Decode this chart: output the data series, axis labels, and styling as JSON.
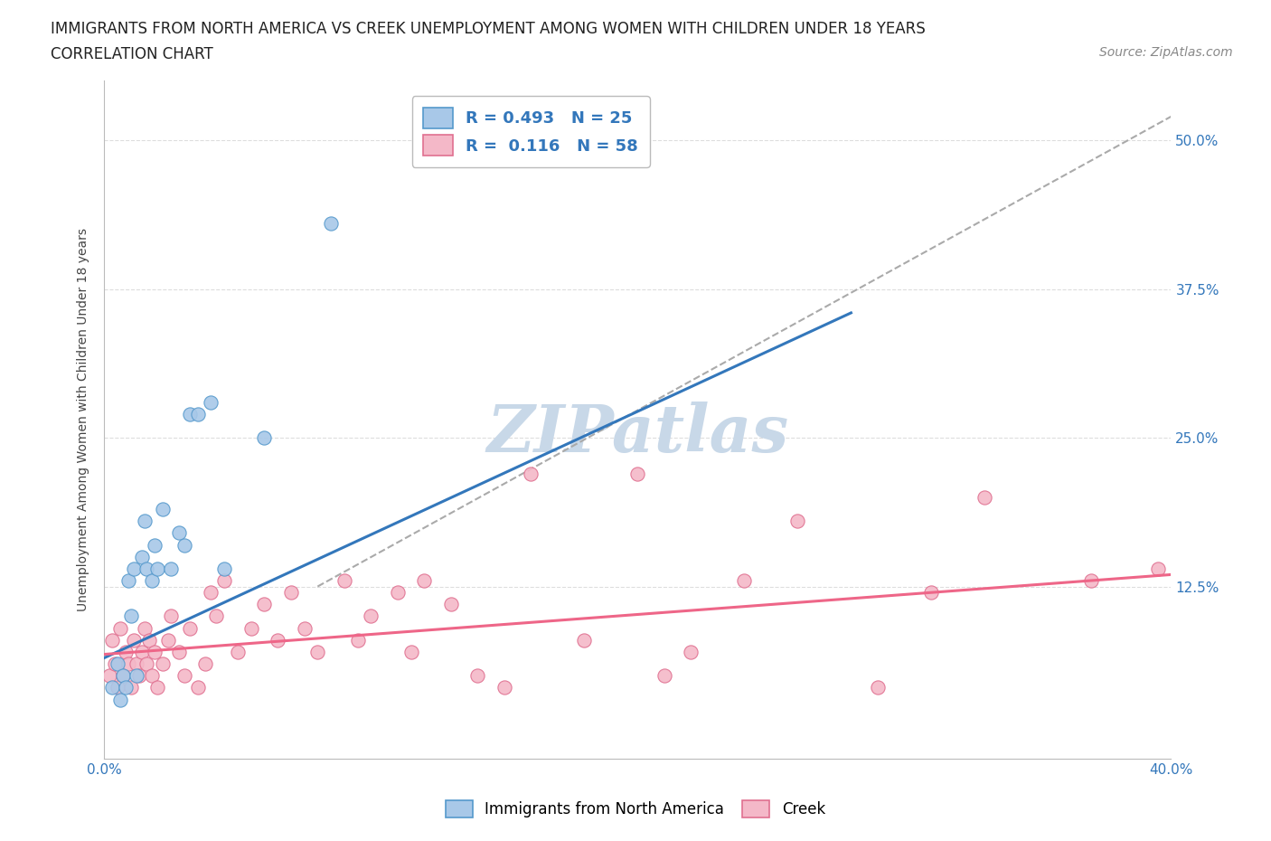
{
  "title_line1": "IMMIGRANTS FROM NORTH AMERICA VS CREEK UNEMPLOYMENT AMONG WOMEN WITH CHILDREN UNDER 18 YEARS",
  "title_line2": "CORRELATION CHART",
  "source_text": "Source: ZipAtlas.com",
  "ylabel": "Unemployment Among Women with Children Under 18 years",
  "xlim": [
    0.0,
    0.4
  ],
  "ylim": [
    -0.02,
    0.55
  ],
  "xticklabels_pos": [
    0.0,
    0.4
  ],
  "xticklabels": [
    "0.0%",
    "40.0%"
  ],
  "yticklabels": [
    "12.5%",
    "25.0%",
    "37.5%",
    "50.0%"
  ],
  "ytick_vals": [
    0.125,
    0.25,
    0.375,
    0.5
  ],
  "legend_label1": "Immigrants from North America",
  "legend_label2": "Creek",
  "R1": "0.493",
  "N1": "25",
  "R2": "0.116",
  "N2": "58",
  "blue_color": "#a8c8e8",
  "pink_color": "#f4b8c8",
  "blue_edge_color": "#5599cc",
  "pink_edge_color": "#e07090",
  "blue_line_color": "#3377bb",
  "pink_line_color": "#ee6688",
  "dashed_line_color": "#aaaaaa",
  "watermark_color": "#c8d8e8",
  "background_color": "#ffffff",
  "blue_scatter_x": [
    0.003,
    0.005,
    0.006,
    0.007,
    0.008,
    0.009,
    0.01,
    0.011,
    0.012,
    0.014,
    0.015,
    0.016,
    0.018,
    0.019,
    0.02,
    0.022,
    0.025,
    0.028,
    0.03,
    0.032,
    0.035,
    0.04,
    0.045,
    0.06,
    0.085
  ],
  "blue_scatter_y": [
    0.04,
    0.06,
    0.03,
    0.05,
    0.04,
    0.13,
    0.1,
    0.14,
    0.05,
    0.15,
    0.18,
    0.14,
    0.13,
    0.16,
    0.14,
    0.19,
    0.14,
    0.17,
    0.16,
    0.27,
    0.27,
    0.28,
    0.14,
    0.25,
    0.43
  ],
  "pink_scatter_x": [
    0.002,
    0.003,
    0.004,
    0.005,
    0.006,
    0.007,
    0.008,
    0.009,
    0.01,
    0.011,
    0.012,
    0.013,
    0.014,
    0.015,
    0.016,
    0.017,
    0.018,
    0.019,
    0.02,
    0.022,
    0.024,
    0.025,
    0.028,
    0.03,
    0.032,
    0.035,
    0.038,
    0.04,
    0.042,
    0.045,
    0.05,
    0.055,
    0.06,
    0.065,
    0.07,
    0.075,
    0.08,
    0.09,
    0.095,
    0.1,
    0.11,
    0.115,
    0.12,
    0.13,
    0.14,
    0.15,
    0.16,
    0.18,
    0.2,
    0.21,
    0.22,
    0.24,
    0.26,
    0.29,
    0.31,
    0.33,
    0.37,
    0.395
  ],
  "pink_scatter_y": [
    0.05,
    0.08,
    0.06,
    0.04,
    0.09,
    0.05,
    0.07,
    0.06,
    0.04,
    0.08,
    0.06,
    0.05,
    0.07,
    0.09,
    0.06,
    0.08,
    0.05,
    0.07,
    0.04,
    0.06,
    0.08,
    0.1,
    0.07,
    0.05,
    0.09,
    0.04,
    0.06,
    0.12,
    0.1,
    0.13,
    0.07,
    0.09,
    0.11,
    0.08,
    0.12,
    0.09,
    0.07,
    0.13,
    0.08,
    0.1,
    0.12,
    0.07,
    0.13,
    0.11,
    0.05,
    0.04,
    0.22,
    0.08,
    0.22,
    0.05,
    0.07,
    0.13,
    0.18,
    0.04,
    0.12,
    0.2,
    0.13,
    0.14
  ],
  "blue_line_x0": 0.0,
  "blue_line_y0": 0.065,
  "blue_line_x1": 0.28,
  "blue_line_y1": 0.355,
  "pink_line_x0": 0.0,
  "pink_line_y0": 0.068,
  "pink_line_x1": 0.4,
  "pink_line_y1": 0.135,
  "dash_line_x0": 0.08,
  "dash_line_y0": 0.125,
  "dash_line_x1": 0.4,
  "dash_line_y1": 0.52,
  "title_fontsize": 12,
  "subtitle_fontsize": 12,
  "axis_label_fontsize": 10,
  "tick_fontsize": 11,
  "legend_fontsize": 13,
  "watermark_fontsize": 52
}
